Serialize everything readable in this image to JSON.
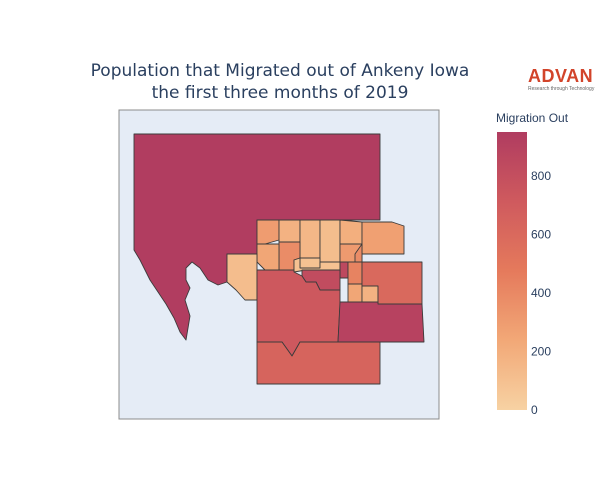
{
  "title": {
    "line1": "Population that Migrated out of Ankeny Iowa",
    "line2": "the first three months of 2019"
  },
  "logo": {
    "name": "ADVAN",
    "tagline": "Research through Technology"
  },
  "map": {
    "background": "#e5ecf6",
    "frame_color": "#8c8c8c",
    "regions": [
      {
        "id": "west-large",
        "value": 945
      },
      {
        "id": "north-1",
        "value": 300
      },
      {
        "id": "north-2",
        "value": 180
      },
      {
        "id": "north-3",
        "value": 150
      },
      {
        "id": "north-4",
        "value": 380
      },
      {
        "id": "north-5",
        "value": 120
      },
      {
        "id": "north-6",
        "value": 200
      },
      {
        "id": "north-7",
        "value": 280
      },
      {
        "id": "north-8",
        "value": 250
      },
      {
        "id": "north-9",
        "value": 90
      },
      {
        "id": "north-10",
        "value": 310
      },
      {
        "id": "mid-1",
        "value": 380
      },
      {
        "id": "mid-2",
        "value": 120
      },
      {
        "id": "mid-3",
        "value": 90
      },
      {
        "id": "mid-4",
        "value": 850
      },
      {
        "id": "mid-5",
        "value": 430
      },
      {
        "id": "mid-6",
        "value": 820
      },
      {
        "id": "mid-7",
        "value": 250
      },
      {
        "id": "mid-8",
        "value": 180
      },
      {
        "id": "east-1",
        "value": 600
      },
      {
        "id": "central-large",
        "value": 730
      },
      {
        "id": "southeast",
        "value": 900
      },
      {
        "id": "south",
        "value": 640
      }
    ]
  },
  "colorbar": {
    "title": "Migration Out",
    "min": 0,
    "max": 950,
    "ticks": [
      {
        "value": 0,
        "label": "0"
      },
      {
        "value": 200,
        "label": "200"
      },
      {
        "value": 400,
        "label": "400"
      },
      {
        "value": 600,
        "label": "600"
      },
      {
        "value": 800,
        "label": "800"
      }
    ],
    "colorscale": [
      "#f7d2a3",
      "#f2a877",
      "#e57a5c",
      "#cf5a5e",
      "#b03c60"
    ]
  }
}
